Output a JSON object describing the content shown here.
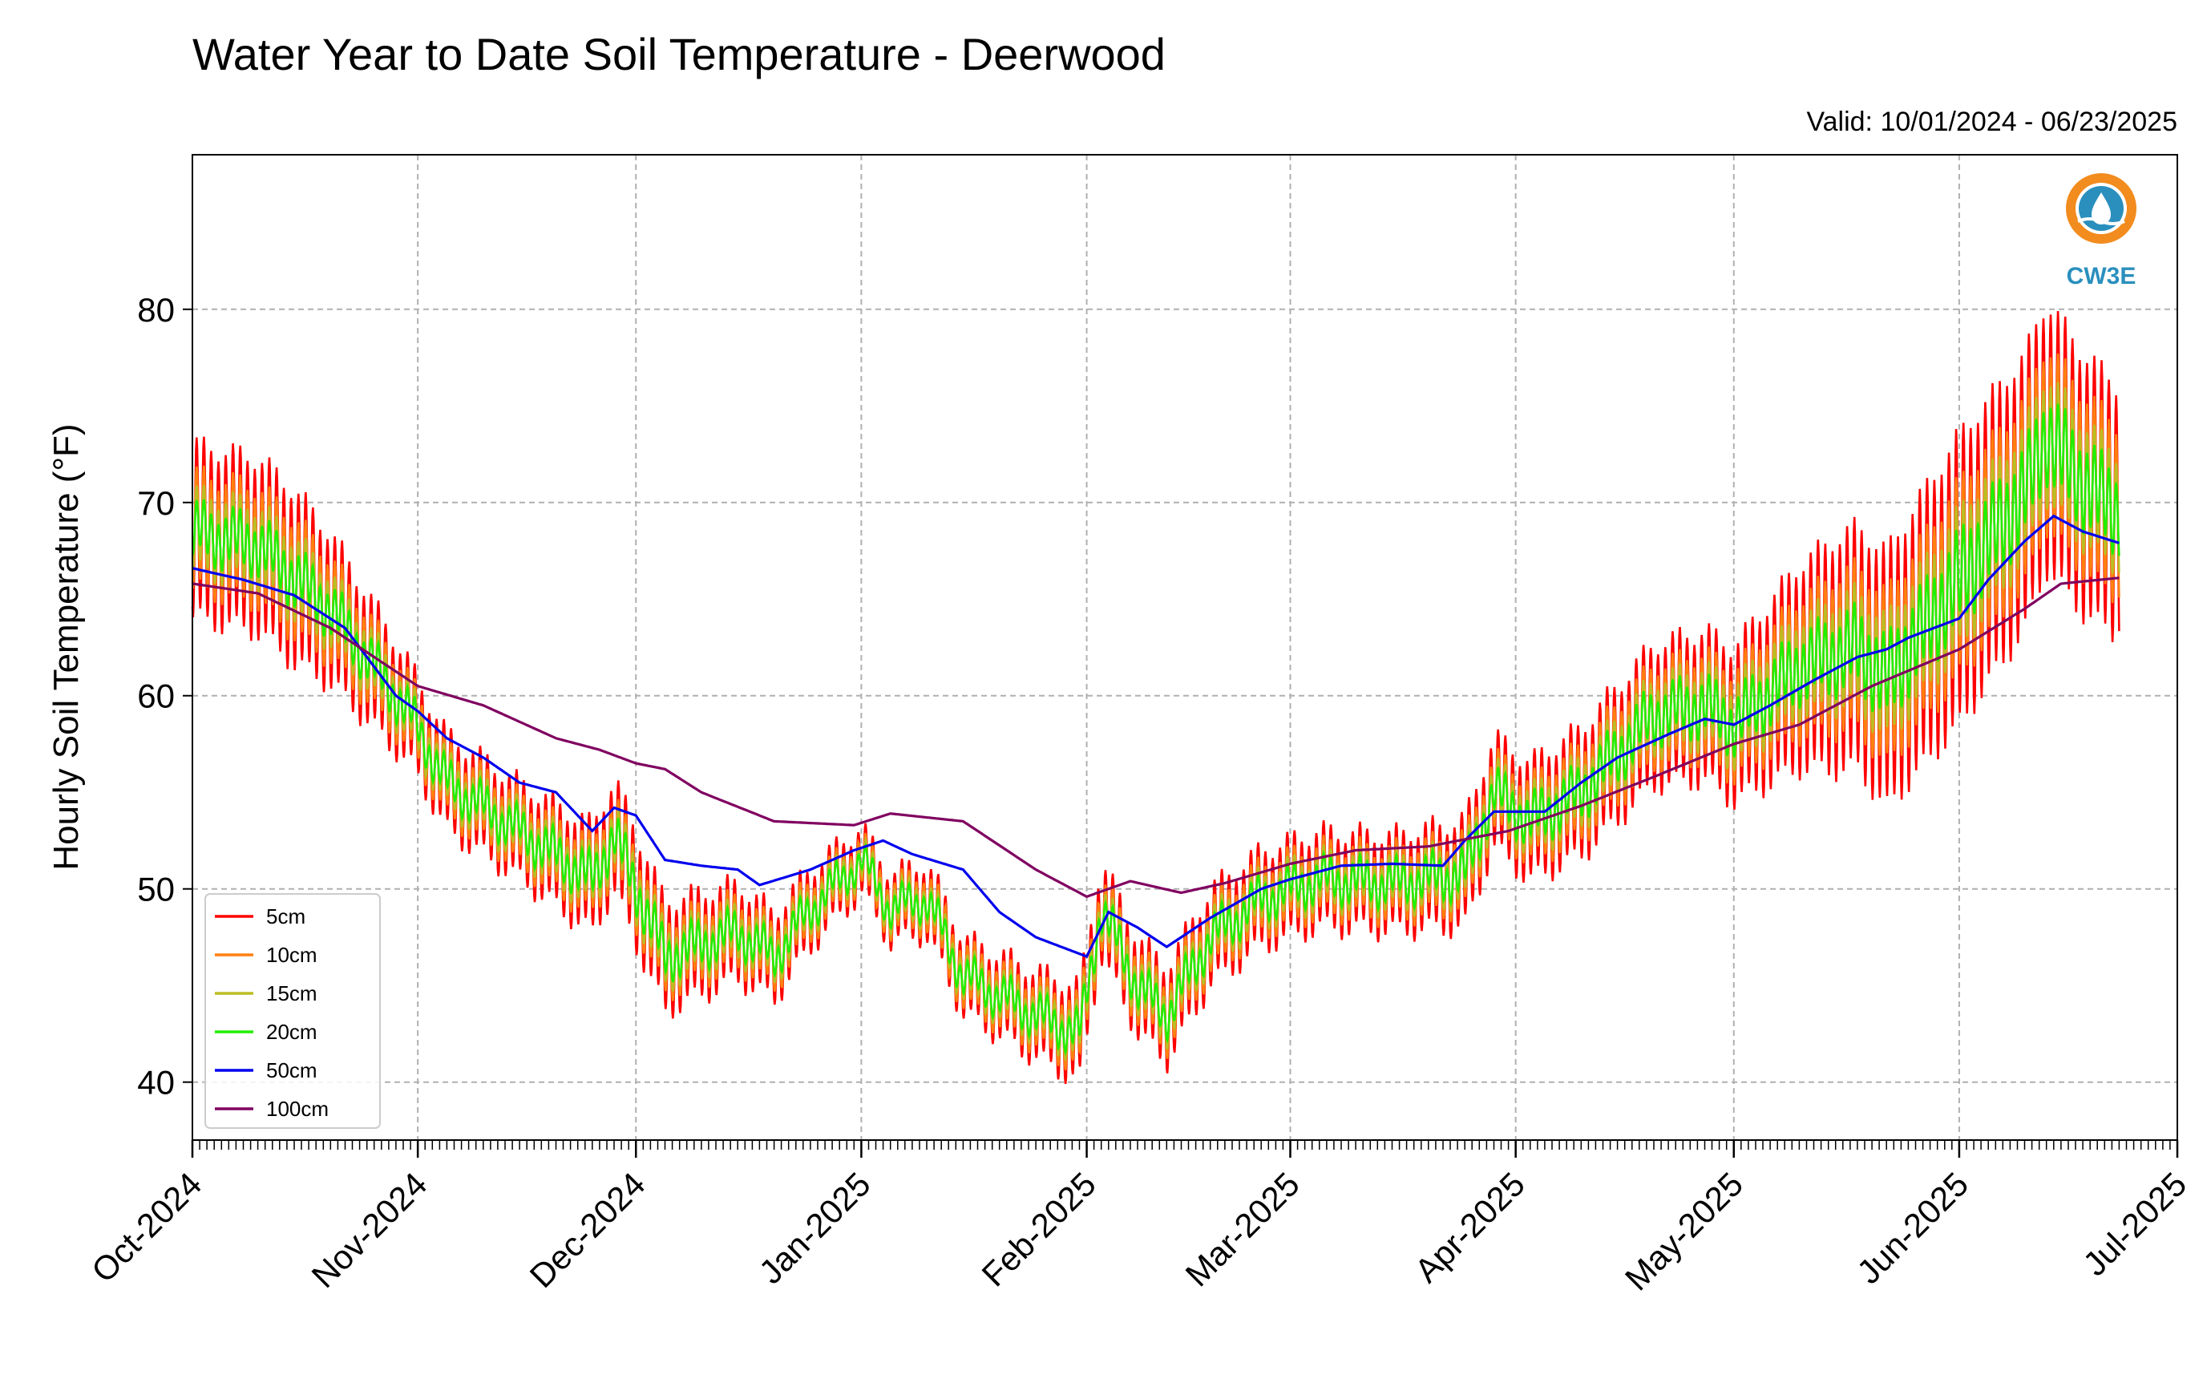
{
  "chart_data": {
    "type": "line",
    "title": "Water Year to Date Soil Temperature - Deerwood",
    "subtitle": "Valid: 10/01/2024 - 06/23/2025",
    "xlabel": "",
    "ylabel": "Hourly Soil Temperature (°F)",
    "xlim": [
      "2024-10-01",
      "2025-07-01"
    ],
    "ylim": [
      37,
      88
    ],
    "yticks": [
      40,
      50,
      60,
      70,
      80
    ],
    "xtick_labels": [
      "Oct-2024",
      "Nov-2024",
      "Dec-2024",
      "Jan-2025",
      "Feb-2025",
      "Mar-2025",
      "Apr-2025",
      "May-2025",
      "Jun-2025",
      "Jul-2025"
    ],
    "xtick_dates": [
      "2024-10-01",
      "2024-11-01",
      "2024-12-01",
      "2025-01-01",
      "2025-02-01",
      "2025-03-01",
      "2025-04-01",
      "2025-05-01",
      "2025-06-01",
      "2025-07-01"
    ],
    "grid": true,
    "legend_position": "bottom-left",
    "logo_text": "CW3E",
    "series": [
      {
        "name": "5cm",
        "color": "#ff0000",
        "amplitude": [
          [
            "2024-10-01",
            9
          ],
          [
            "2024-10-15",
            9
          ],
          [
            "2024-11-01",
            5
          ],
          [
            "2024-11-15",
            5
          ],
          [
            "2024-12-01",
            6
          ],
          [
            "2024-12-15",
            5
          ],
          [
            "2025-01-01",
            3.5
          ],
          [
            "2025-01-15",
            4
          ],
          [
            "2025-02-01",
            5
          ],
          [
            "2025-02-15",
            5
          ],
          [
            "2025-03-01",
            5
          ],
          [
            "2025-03-15",
            5
          ],
          [
            "2025-04-01",
            6
          ],
          [
            "2025-04-15",
            7
          ],
          [
            "2025-05-01",
            8
          ],
          [
            "2025-05-15",
            12
          ],
          [
            "2025-06-01",
            15
          ],
          [
            "2025-06-23",
            13
          ]
        ]
      },
      {
        "name": "10cm",
        "color": "#ff7f0e",
        "amplitude": [
          [
            "2024-10-01",
            6
          ],
          [
            "2024-10-15",
            6
          ],
          [
            "2024-11-01",
            3.5
          ],
          [
            "2024-11-15",
            3.5
          ],
          [
            "2024-12-01",
            4
          ],
          [
            "2024-12-15",
            3.5
          ],
          [
            "2025-01-01",
            2.5
          ],
          [
            "2025-01-15",
            3
          ],
          [
            "2025-02-01",
            3.5
          ],
          [
            "2025-02-15",
            3.5
          ],
          [
            "2025-03-01",
            3.5
          ],
          [
            "2025-03-15",
            3.5
          ],
          [
            "2025-04-01",
            4
          ],
          [
            "2025-04-15",
            5
          ],
          [
            "2025-05-01",
            5.5
          ],
          [
            "2025-05-15",
            8
          ],
          [
            "2025-06-01",
            10
          ],
          [
            "2025-06-23",
            9
          ]
        ]
      },
      {
        "name": "15cm",
        "color": "#bcbd22",
        "amplitude": [
          [
            "2024-10-01",
            4
          ],
          [
            "2024-10-15",
            4
          ],
          [
            "2024-11-01",
            2.5
          ],
          [
            "2024-11-15",
            2.5
          ],
          [
            "2024-12-01",
            3
          ],
          [
            "2024-12-15",
            2.5
          ],
          [
            "2025-01-01",
            1.8
          ],
          [
            "2025-01-15",
            2
          ],
          [
            "2025-02-01",
            2.5
          ],
          [
            "2025-02-15",
            2.5
          ],
          [
            "2025-03-01",
            2.5
          ],
          [
            "2025-03-15",
            2.5
          ],
          [
            "2025-04-01",
            3
          ],
          [
            "2025-04-15",
            3.5
          ],
          [
            "2025-05-01",
            4
          ],
          [
            "2025-05-15",
            5.5
          ],
          [
            "2025-06-01",
            7
          ],
          [
            "2025-06-23",
            6
          ]
        ]
      },
      {
        "name": "20cm",
        "color": "#22ee00",
        "amplitude": [
          [
            "2024-10-01",
            2.5
          ],
          [
            "2024-10-15",
            2.5
          ],
          [
            "2024-11-01",
            1.6
          ],
          [
            "2024-11-15",
            1.6
          ],
          [
            "2024-12-01",
            2
          ],
          [
            "2024-12-15",
            1.6
          ],
          [
            "2025-01-01",
            1.2
          ],
          [
            "2025-01-15",
            1.4
          ],
          [
            "2025-02-01",
            1.6
          ],
          [
            "2025-02-15",
            1.6
          ],
          [
            "2025-03-01",
            1.6
          ],
          [
            "2025-03-15",
            1.6
          ],
          [
            "2025-04-01",
            2
          ],
          [
            "2025-04-15",
            2.4
          ],
          [
            "2025-05-01",
            2.6
          ],
          [
            "2025-05-15",
            3.5
          ],
          [
            "2025-06-01",
            4.5
          ],
          [
            "2025-06-23",
            4
          ]
        ]
      },
      {
        "name": "50cm",
        "color": "#0000ee",
        "values": [
          [
            "2024-10-01",
            66.6
          ],
          [
            "2024-10-08",
            66.0
          ],
          [
            "2024-10-15",
            65.2
          ],
          [
            "2024-10-22",
            63.5
          ],
          [
            "2024-10-29",
            60.0
          ],
          [
            "2024-11-01",
            59.2
          ],
          [
            "2024-11-05",
            57.8
          ],
          [
            "2024-11-10",
            56.8
          ],
          [
            "2024-11-15",
            55.5
          ],
          [
            "2024-11-20",
            55.0
          ],
          [
            "2024-11-25",
            53.0
          ],
          [
            "2024-11-28",
            54.2
          ],
          [
            "2024-12-01",
            53.8
          ],
          [
            "2024-12-05",
            51.5
          ],
          [
            "2024-12-10",
            51.2
          ],
          [
            "2024-12-15",
            51.0
          ],
          [
            "2024-12-18",
            50.2
          ],
          [
            "2024-12-25",
            51.0
          ],
          [
            "2024-12-31",
            52.0
          ],
          [
            "2025-01-04",
            52.5
          ],
          [
            "2025-01-08",
            51.8
          ],
          [
            "2025-01-15",
            51.0
          ],
          [
            "2025-01-20",
            48.8
          ],
          [
            "2025-01-25",
            47.5
          ],
          [
            "2025-02-01",
            46.5
          ],
          [
            "2025-02-04",
            48.8
          ],
          [
            "2025-02-08",
            48.0
          ],
          [
            "2025-02-12",
            47.0
          ],
          [
            "2025-02-18",
            48.5
          ],
          [
            "2025-02-25",
            50.0
          ],
          [
            "2025-03-01",
            50.5
          ],
          [
            "2025-03-08",
            51.2
          ],
          [
            "2025-03-15",
            51.3
          ],
          [
            "2025-03-22",
            51.2
          ],
          [
            "2025-03-25",
            52.5
          ],
          [
            "2025-03-29",
            54.0
          ],
          [
            "2025-04-05",
            54.0
          ],
          [
            "2025-04-10",
            55.5
          ],
          [
            "2025-04-15",
            56.8
          ],
          [
            "2025-04-22",
            58.0
          ],
          [
            "2025-04-27",
            58.8
          ],
          [
            "2025-05-01",
            58.5
          ],
          [
            "2025-05-06",
            59.5
          ],
          [
            "2025-05-12",
            60.8
          ],
          [
            "2025-05-18",
            62.0
          ],
          [
            "2025-05-22",
            62.4
          ],
          [
            "2025-05-25",
            63.0
          ],
          [
            "2025-06-01",
            64.0
          ],
          [
            "2025-06-05",
            66.0
          ],
          [
            "2025-06-10",
            68.0
          ],
          [
            "2025-06-14",
            69.3
          ],
          [
            "2025-06-18",
            68.5
          ],
          [
            "2025-06-23",
            67.9
          ]
        ]
      },
      {
        "name": "100cm",
        "color": "#800060",
        "values": [
          [
            "2024-10-01",
            65.8
          ],
          [
            "2024-10-10",
            65.3
          ],
          [
            "2024-10-20",
            63.5
          ],
          [
            "2024-11-01",
            60.5
          ],
          [
            "2024-11-10",
            59.5
          ],
          [
            "2024-11-20",
            57.8
          ],
          [
            "2024-11-26",
            57.2
          ],
          [
            "2024-12-01",
            56.5
          ],
          [
            "2024-12-05",
            56.2
          ],
          [
            "2024-12-10",
            55.0
          ],
          [
            "2024-12-20",
            53.5
          ],
          [
            "2024-12-31",
            53.3
          ],
          [
            "2025-01-05",
            53.9
          ],
          [
            "2025-01-15",
            53.5
          ],
          [
            "2025-01-25",
            51.0
          ],
          [
            "2025-02-01",
            49.6
          ],
          [
            "2025-02-07",
            50.4
          ],
          [
            "2025-02-14",
            49.8
          ],
          [
            "2025-02-20",
            50.3
          ],
          [
            "2025-03-01",
            51.3
          ],
          [
            "2025-03-10",
            52.0
          ],
          [
            "2025-03-20",
            52.2
          ],
          [
            "2025-03-31",
            53.0
          ],
          [
            "2025-04-10",
            54.3
          ],
          [
            "2025-04-20",
            55.8
          ],
          [
            "2025-05-01",
            57.5
          ],
          [
            "2025-05-10",
            58.5
          ],
          [
            "2025-05-20",
            60.5
          ],
          [
            "2025-06-01",
            62.4
          ],
          [
            "2025-06-10",
            64.5
          ],
          [
            "2025-06-15",
            65.8
          ],
          [
            "2025-06-23",
            66.1
          ]
        ]
      }
    ],
    "baseline_20cm": [
      [
        "2024-10-01",
        68.5
      ],
      [
        "2024-10-10",
        67.8
      ],
      [
        "2024-10-20",
        64.5
      ],
      [
        "2024-10-31",
        59.0
      ],
      [
        "2024-11-05",
        55.5
      ],
      [
        "2024-11-15",
        53.0
      ],
      [
        "2024-11-25",
        50.5
      ],
      [
        "2024-11-28",
        52.8
      ],
      [
        "2024-12-05",
        46.5
      ],
      [
        "2024-12-15",
        47.8
      ],
      [
        "2024-12-20",
        46.5
      ],
      [
        "2024-12-25",
        49.0
      ],
      [
        "2025-01-01",
        51.5
      ],
      [
        "2025-01-05",
        49.0
      ],
      [
        "2025-01-10",
        49.5
      ],
      [
        "2025-01-15",
        45.5
      ],
      [
        "2025-01-25",
        43.5
      ],
      [
        "2025-01-31",
        42.5
      ],
      [
        "2025-02-03",
        49.0
      ],
      [
        "2025-02-08",
        45.0
      ],
      [
        "2025-02-12",
        43.5
      ],
      [
        "2025-02-18",
        47.5
      ],
      [
        "2025-02-25",
        49.5
      ],
      [
        "2025-03-05",
        50.5
      ],
      [
        "2025-03-15",
        50.3
      ],
      [
        "2025-03-25",
        50.8
      ],
      [
        "2025-03-29",
        55.0
      ],
      [
        "2025-04-03",
        53.5
      ],
      [
        "2025-04-10",
        55.0
      ],
      [
        "2025-04-20",
        59.0
      ],
      [
        "2025-04-27",
        59.5
      ],
      [
        "2025-05-01",
        58.5
      ],
      [
        "2025-05-10",
        61.5
      ],
      [
        "2025-05-18",
        62.5
      ],
      [
        "2025-05-22",
        60.8
      ],
      [
        "2025-06-01",
        66.0
      ],
      [
        "2025-06-10",
        70.5
      ],
      [
        "2025-06-13",
        73.5
      ],
      [
        "2025-06-18",
        71.0
      ],
      [
        "2025-06-23",
        69.5
      ]
    ]
  }
}
